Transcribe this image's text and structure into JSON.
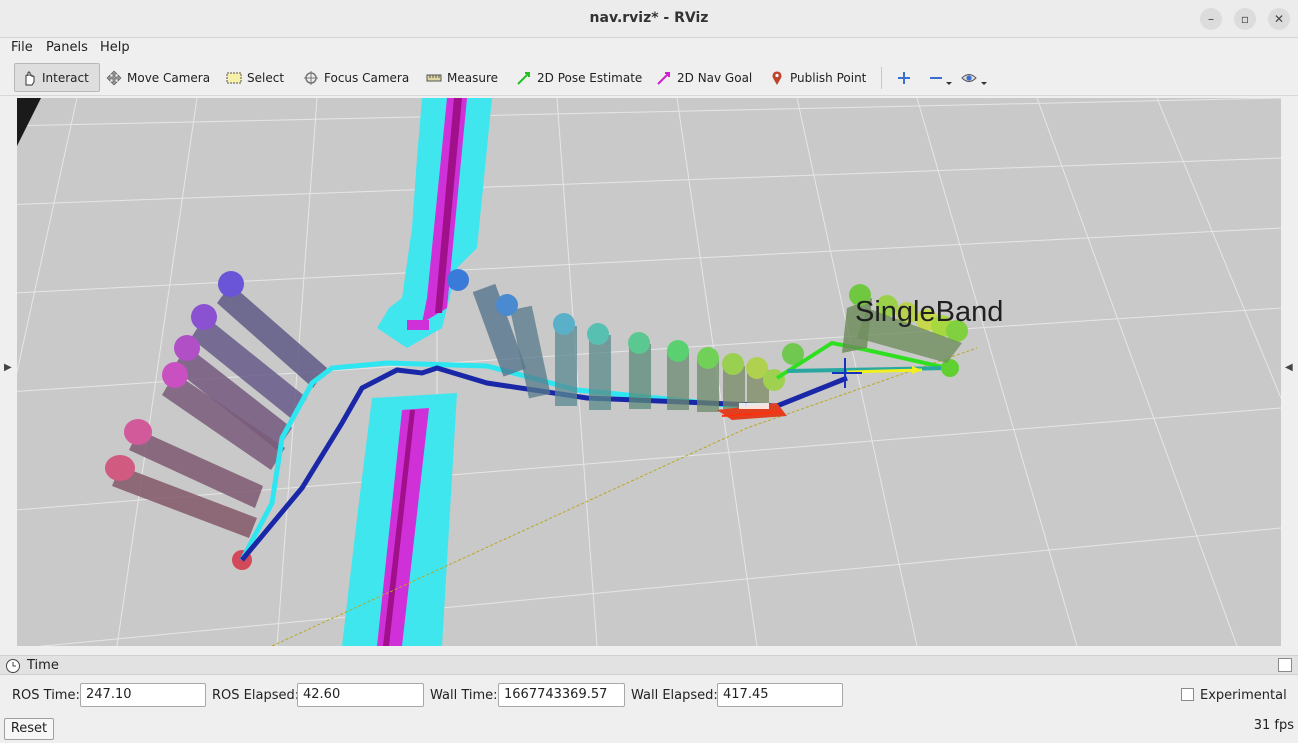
{
  "window": {
    "title": "nav.rviz* - RViz",
    "minimize": "–",
    "maximize": "▫",
    "close": "✕"
  },
  "menu": {
    "file": "File",
    "panels": "Panels",
    "help": "Help"
  },
  "toolbar": {
    "interact": "Interact",
    "move_camera": "Move Camera",
    "select": "Select",
    "focus_camera": "Focus Camera",
    "measure": "Measure",
    "pose_estimate": "2D Pose Estimate",
    "nav_goal": "2D Nav Goal",
    "publish_point": "Publish Point"
  },
  "viewport": {
    "label": "SingleBand"
  },
  "time_panel": {
    "title": "Time",
    "ros_time_label": "ROS Time:",
    "ros_time": "247.10",
    "ros_elapsed_label": "ROS Elapsed:",
    "ros_elapsed": "42.60",
    "wall_time_label": "Wall Time:",
    "wall_time": "1667743369.57",
    "wall_elapsed_label": "Wall Elapsed:",
    "wall_elapsed": "417.45",
    "experimental_label": "Experimental",
    "reset_label": "Reset",
    "fps": "31 fps"
  }
}
